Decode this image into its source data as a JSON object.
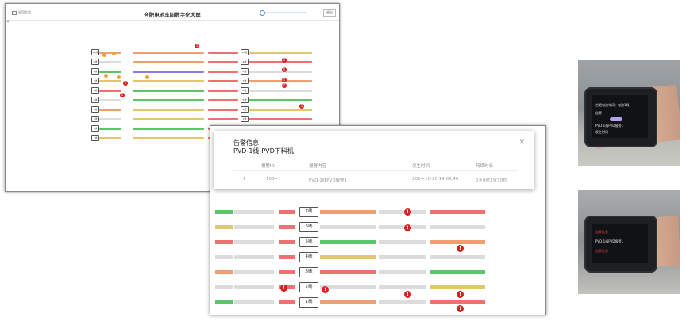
{
  "dashboard": {
    "title": "合肥电池车间数字化大屏",
    "back_label": "返回总览",
    "exit_label": "退出"
  },
  "dashboard_small": {
    "line_labels": [
      "1线",
      "2线",
      "3线",
      "4线",
      "5线",
      "6线",
      "7线",
      "8线",
      "9线",
      "10线"
    ],
    "alerts": [
      "!",
      "!",
      "!",
      "!",
      "!",
      "!",
      "!",
      "!"
    ]
  },
  "alarm_modal": {
    "title": "告警信息",
    "subtitle": "PVD-1线-PVD下料机",
    "close_icon": "close-icon",
    "columns": [
      "报警ID",
      "报警内容",
      "发生时间",
      "持续时长"
    ],
    "rows": [
      {
        "index": "1",
        "id": "1084",
        "content": "PVD-1线PVD报警1",
        "time": "2024-10-20 14:06:46",
        "duration": "0天0时2分30秒"
      }
    ]
  },
  "line_panel": {
    "labels": [
      "7线",
      "6线",
      "5线",
      "4线",
      "3线",
      "2线",
      "1线"
    ],
    "alert_mark": "!"
  },
  "smartwatch": {
    "screen_top": {
      "line1": "合肥电池车间：电池1线",
      "line2": "告警",
      "line3": "PVD-1线PVD报警1",
      "line4": "发生时间"
    },
    "screen_bottom": {
      "line1": "告警信息",
      "line2": "PVD-1线PVD报警1",
      "line3": "告警信息"
    }
  },
  "colors": {
    "alert_red": "#d81e1e",
    "seg_green": "#5cc46a",
    "seg_orange": "#f0a070",
    "seg_yellow": "#e2c868",
    "seg_red": "#ee7070",
    "seg_purple": "#8a7fe8",
    "seg_gray": "#dcdcdc"
  }
}
